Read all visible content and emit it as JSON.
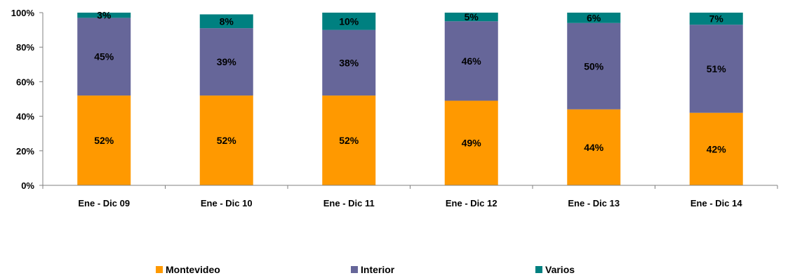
{
  "chart_data": {
    "type": "bar",
    "stacked": true,
    "percent_stacked": true,
    "categories": [
      "Ene - Dic 09",
      "Ene - Dic 10",
      "Ene - Dic 11",
      "Ene - Dic 12",
      "Ene - Dic 13",
      "Ene - Dic 14"
    ],
    "series": [
      {
        "name": "Montevideo",
        "color": "#FF9900",
        "values": [
          52,
          52,
          52,
          49,
          44,
          42
        ],
        "labels": [
          "52%",
          "52%",
          "52%",
          "49%",
          "44%",
          "42%"
        ]
      },
      {
        "name": "Interior",
        "color": "#666699",
        "values": [
          45,
          39,
          38,
          46,
          50,
          51
        ],
        "labels": [
          "45%",
          "39%",
          "38%",
          "46%",
          "50%",
          "51%"
        ]
      },
      {
        "name": "Varios",
        "color": "#008080",
        "values": [
          3,
          8,
          10,
          5,
          6,
          7
        ],
        "labels": [
          "3%",
          "8%",
          "10%",
          "5%",
          "6%",
          "7%"
        ]
      }
    ],
    "ylim": [
      0,
      100
    ],
    "y_ticks": [
      0,
      20,
      40,
      60,
      80,
      100
    ],
    "y_tick_labels": [
      "0%",
      "20%",
      "40%",
      "60%",
      "80%",
      "100%"
    ],
    "title": "",
    "xlabel": "",
    "ylabel": "",
    "grid": false,
    "legend_position": "bottom"
  }
}
